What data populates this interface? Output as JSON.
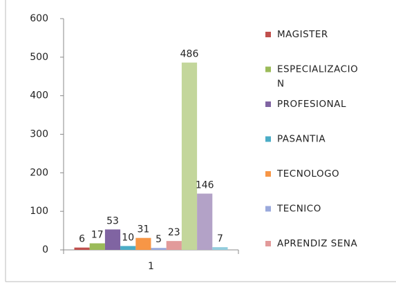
{
  "chart_data": {
    "type": "bar",
    "categories": [
      "1"
    ],
    "series": [
      {
        "name": "MAGISTER",
        "color": "#c0504d",
        "values": [
          6
        ]
      },
      {
        "name": "ESPECIALIZACION",
        "color": "#9bbb59",
        "values": [
          17
        ]
      },
      {
        "name": "PROFESIONAL",
        "color": "#8064a2",
        "values": [
          53
        ]
      },
      {
        "name": "PASANTIA",
        "color": "#4bacc6",
        "values": [
          10
        ]
      },
      {
        "name": "TECNOLOGO",
        "color": "#f79646",
        "values": [
          31
        ]
      },
      {
        "name": "TECNICO",
        "color": "#9aa9dc",
        "values": [
          5
        ]
      },
      {
        "name": "APRENDIZ SENA",
        "color": "#e29a9a",
        "values": [
          23
        ]
      },
      {
        "name": null,
        "color": "#c3d69b",
        "values": [
          486
        ]
      },
      {
        "name": null,
        "color": "#b3a2c7",
        "values": [
          146
        ]
      },
      {
        "name": null,
        "color": "#93cddd",
        "values": [
          7
        ]
      }
    ],
    "ylim": [
      0,
      600
    ],
    "yticks": [
      0,
      100,
      200,
      300,
      400,
      500,
      600
    ]
  }
}
